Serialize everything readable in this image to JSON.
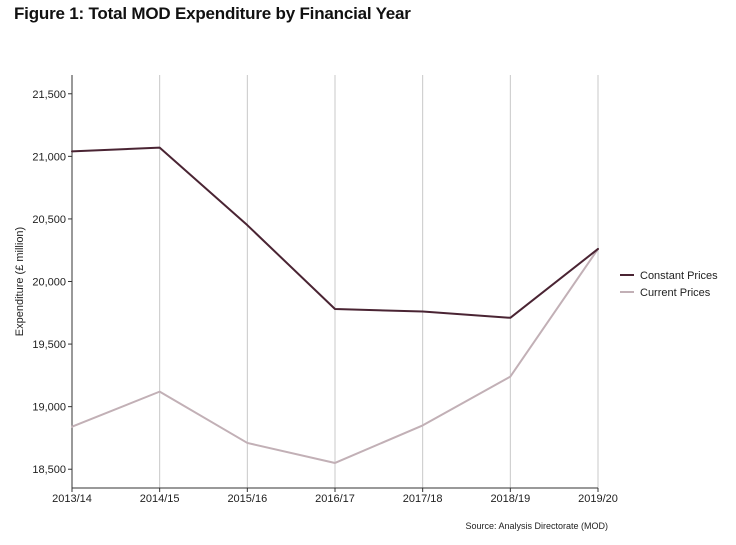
{
  "title": "Figure 1: Total MOD Expenditure by Financial Year",
  "source": "Source: Analysis Directorate (MOD)",
  "chart_data": {
    "type": "line",
    "title": "Figure 1: Total MOD Expenditure by Financial Year",
    "xlabel": "",
    "ylabel": "Expenditure (£ million)",
    "categories": [
      "2013/14",
      "2014/15",
      "2015/16",
      "2016/17",
      "2017/18",
      "2018/19",
      "2019/20"
    ],
    "yticks": [
      "18,500",
      "19,000",
      "19,500",
      "20,000",
      "20,500",
      "21,000",
      "21,500"
    ],
    "ytick_values": [
      18500,
      19000,
      19500,
      20000,
      20500,
      21000,
      21500
    ],
    "ylim": [
      18350,
      21650
    ],
    "grid": "vertical",
    "legend_position": "right",
    "series": [
      {
        "name": "Constant Prices",
        "color": "#4a2433",
        "values": [
          21040,
          21070,
          20450,
          19780,
          19760,
          19710,
          20260
        ]
      },
      {
        "name": "Current Prices",
        "color": "#c2b0b6",
        "values": [
          18840,
          19120,
          18710,
          18550,
          18850,
          19240,
          20260
        ]
      }
    ]
  }
}
